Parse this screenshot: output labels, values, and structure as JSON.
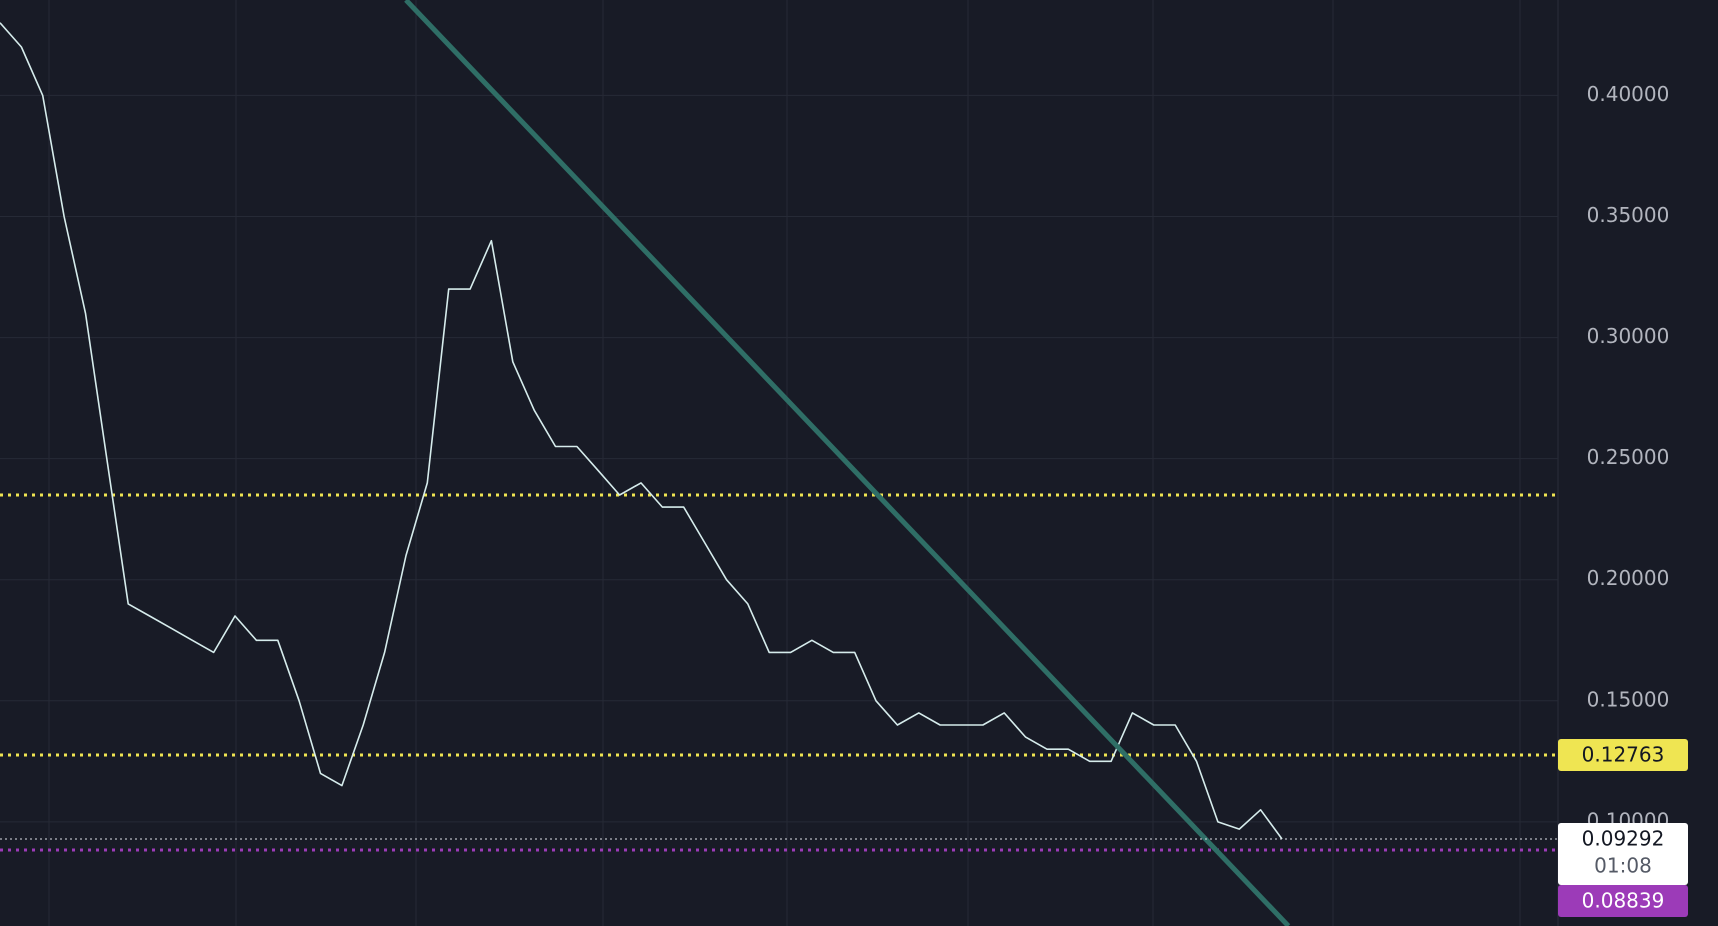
{
  "chart_data": {
    "type": "line",
    "series": [
      {
        "color": "#d6ecec",
        "values": [
          0.43,
          0.42,
          0.4,
          0.35,
          0.31,
          0.25,
          0.19,
          0.185,
          0.18,
          0.175,
          0.17,
          0.185,
          0.175,
          0.175,
          0.15,
          0.12,
          0.115,
          0.14,
          0.17,
          0.21,
          0.24,
          0.32,
          0.32,
          0.34,
          0.29,
          0.27,
          0.255,
          0.255,
          0.245,
          0.235,
          0.24,
          0.23,
          0.23,
          0.215,
          0.2,
          0.19,
          0.17,
          0.17,
          0.175,
          0.17,
          0.17,
          0.15,
          0.14,
          0.145,
          0.14,
          0.14,
          0.14,
          0.145,
          0.135,
          0.13,
          0.13,
          0.125,
          0.125,
          0.145,
          0.14,
          0.14,
          0.125,
          0.1,
          0.097,
          0.105,
          0.09292
        ]
      }
    ],
    "xlim": [
      0,
      60
    ],
    "ylim": [
      0.057,
      0.4394
    ],
    "yticks": [
      {
        "value": 0.1,
        "label": "0.10000"
      },
      {
        "value": 0.15,
        "label": "0.15000"
      },
      {
        "value": 0.2,
        "label": "0.20000"
      },
      {
        "value": 0.25,
        "label": "0.25000"
      },
      {
        "value": 0.3,
        "label": "0.30000"
      },
      {
        "value": 0.35,
        "label": "0.35000"
      },
      {
        "value": 0.4,
        "label": "0.40000"
      }
    ],
    "grid": true,
    "trendline": {
      "color": "#2f6e66",
      "x": [
        19,
        60.3
      ],
      "values": [
        0.4394,
        0.057
      ]
    },
    "levels": [
      {
        "value": 0.235,
        "color": "#efe552",
        "show_label": false
      },
      {
        "value": 0.12763,
        "color": "#efe552",
        "show_label": true
      },
      {
        "value": 0.08839,
        "color": "#9c3bb8",
        "show_label": true
      }
    ],
    "last_price": 0.09292,
    "countdown": "01:08"
  }
}
